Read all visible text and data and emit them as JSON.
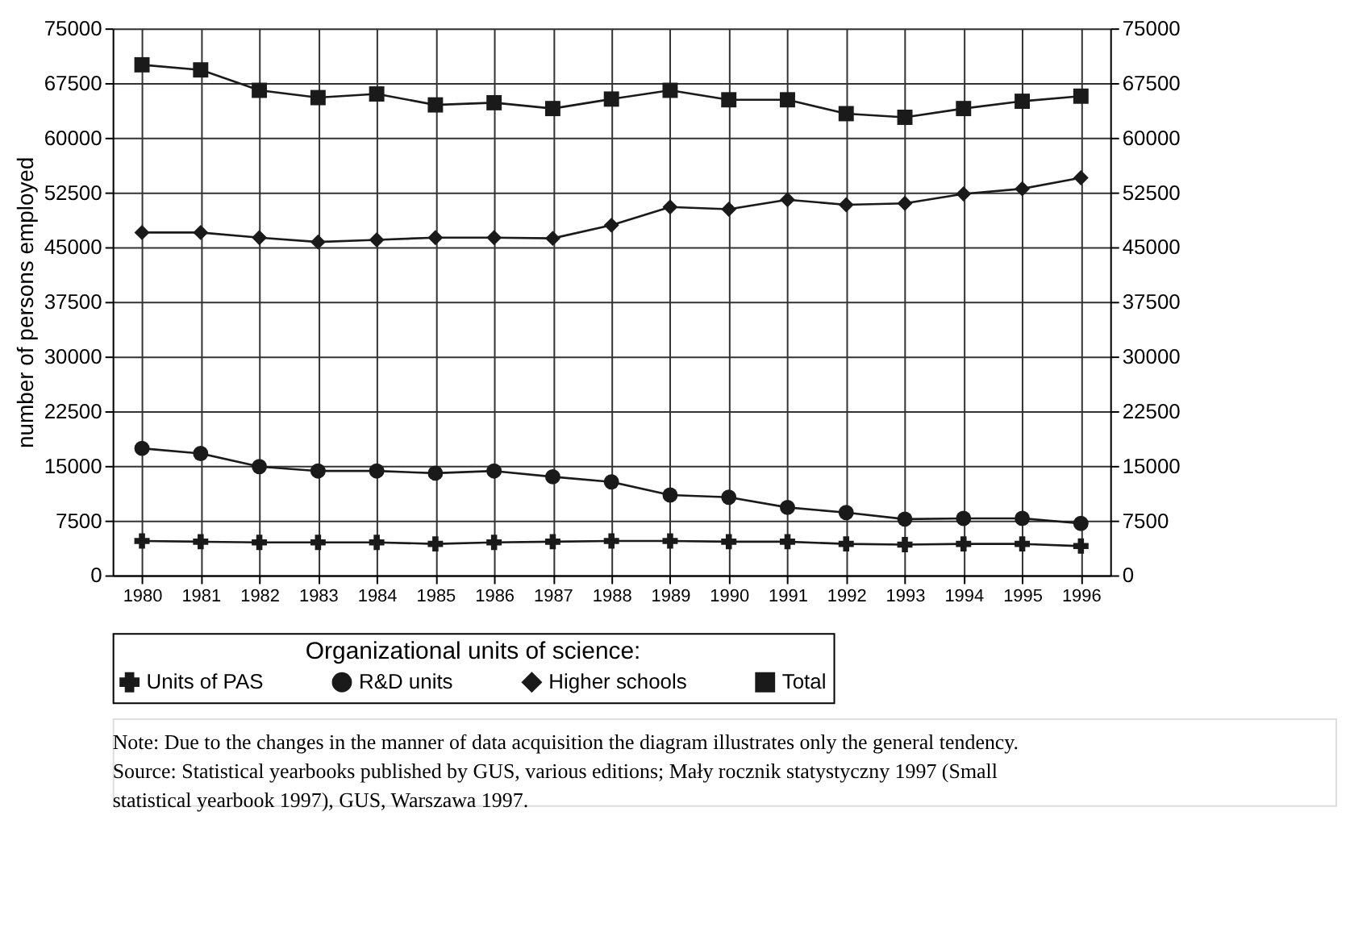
{
  "chart_data": {
    "type": "line",
    "xlabel": null,
    "ylabel": "number of persons employed",
    "legend_title": "Organizational units of science:",
    "categories": [
      "1980",
      "1981",
      "1982",
      "1983",
      "1984",
      "1985",
      "1986",
      "1987",
      "1988",
      "1989",
      "1990",
      "1991",
      "1992",
      "1993",
      "1994",
      "1995",
      "1996"
    ],
    "series": [
      {
        "name": "Units of PAS",
        "color": "#1a1a1a",
        "marker": "cross",
        "values": [
          4700,
          4600,
          4500,
          4500,
          4500,
          4300,
          4500,
          4600,
          4700,
          4700,
          4600,
          4600,
          4300,
          4200,
          4300,
          4300,
          4000
        ]
      },
      {
        "name": "R&D units",
        "color": "#1a1a1a",
        "marker": "circle",
        "values": [
          17400,
          16700,
          14900,
          14300,
          14300,
          14000,
          14300,
          13500,
          12800,
          11000,
          10700,
          9300,
          8600,
          7700,
          7800,
          7800,
          7100
        ]
      },
      {
        "name": "Higher schools",
        "color": "#1a1a1a",
        "marker": "diamond",
        "values": [
          47000,
          47000,
          46300,
          45700,
          46000,
          46300,
          46300,
          46200,
          48000,
          50500,
          50200,
          51500,
          50800,
          51000,
          52300,
          53000,
          54500
        ]
      },
      {
        "name": "Total",
        "color": "#1a1a1a",
        "marker": "square",
        "values": [
          70000,
          69300,
          66500,
          65500,
          66000,
          64500,
          64800,
          64000,
          65300,
          66500,
          65200,
          65200,
          63300,
          62800,
          64000,
          65000,
          65700
        ]
      }
    ],
    "ylim": [
      0,
      75000
    ],
    "yticks": [
      0,
      7500,
      15000,
      22500,
      30000,
      37500,
      45000,
      52500,
      60000,
      67500,
      75000
    ],
    "y2lim": [
      0,
      75000
    ],
    "y2ticks": [
      0,
      7500,
      15000,
      22500,
      30000,
      37500,
      45000,
      52500,
      60000,
      67500,
      75000
    ],
    "grid": true,
    "legend": "bottom",
    "line_style": "solid",
    "annotations": [
      "Note: Due to the changes in the manner of data acquisition the diagram illustrates only the general tendency.",
      "Source: Statistical yearbooks published by GUS, various editions; Mały rocznik statystyczny 1997 (Small statistical yearbook 1997), GUS, Warszawa 1997."
    ]
  }
}
